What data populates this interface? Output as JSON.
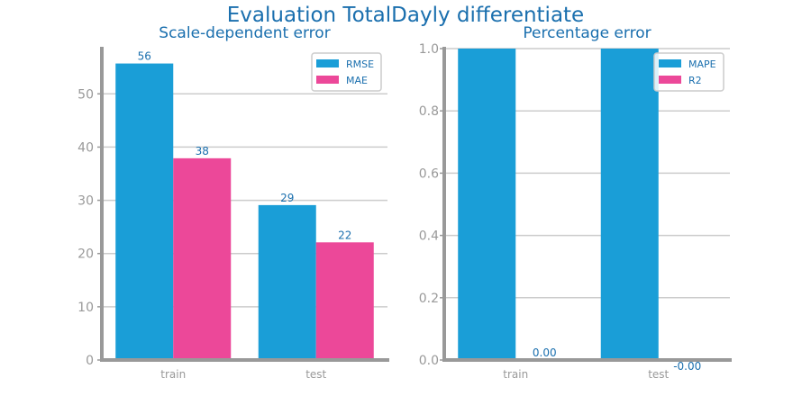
{
  "figure": {
    "title": "Evaluation TotalDayly differentiate"
  },
  "colors": {
    "series1": "#1a9ed7",
    "series2": "#ec4899",
    "axis": "#999999",
    "grid": "#cccccc",
    "title": "#1a6fae",
    "label": "#1a6fae",
    "tick": "#999999"
  },
  "chart_data": [
    {
      "type": "bar",
      "title": "Scale-dependent error",
      "categories": [
        "train",
        "test"
      ],
      "series": [
        {
          "name": "RMSE",
          "values": [
            56,
            29
          ]
        },
        {
          "name": "MAE",
          "values": [
            38,
            22
          ]
        }
      ],
      "value_labels": [
        [
          "56",
          "29"
        ],
        [
          "38",
          "22"
        ]
      ],
      "raw_values": [
        [
          55.7,
          29.1
        ],
        [
          37.9,
          22.1
        ]
      ],
      "ylim": [
        0,
        58.5
      ],
      "yticks": [
        0,
        10,
        20,
        30,
        40,
        50
      ],
      "ytick_labels": [
        "0",
        "10",
        "20",
        "30",
        "40",
        "50"
      ],
      "grid": true,
      "legend": "top-right"
    },
    {
      "type": "bar",
      "title": "Percentage error",
      "categories": [
        "train",
        "test"
      ],
      "series": [
        {
          "name": "MAPE",
          "values": [
            1.0,
            1.0
          ]
        },
        {
          "name": "R2",
          "values": [
            0.0,
            -0.0
          ]
        }
      ],
      "value_labels": [
        [
          null,
          null
        ],
        [
          "0.00",
          "-0.00"
        ]
      ],
      "ylim": [
        0,
        1.0
      ],
      "yticks": [
        0.0,
        0.2,
        0.4,
        0.6,
        0.8,
        1.0
      ],
      "ytick_labels": [
        "0.0",
        "0.2",
        "0.4",
        "0.6",
        "0.8",
        "1.0"
      ],
      "grid": true,
      "legend": "top-right"
    }
  ]
}
